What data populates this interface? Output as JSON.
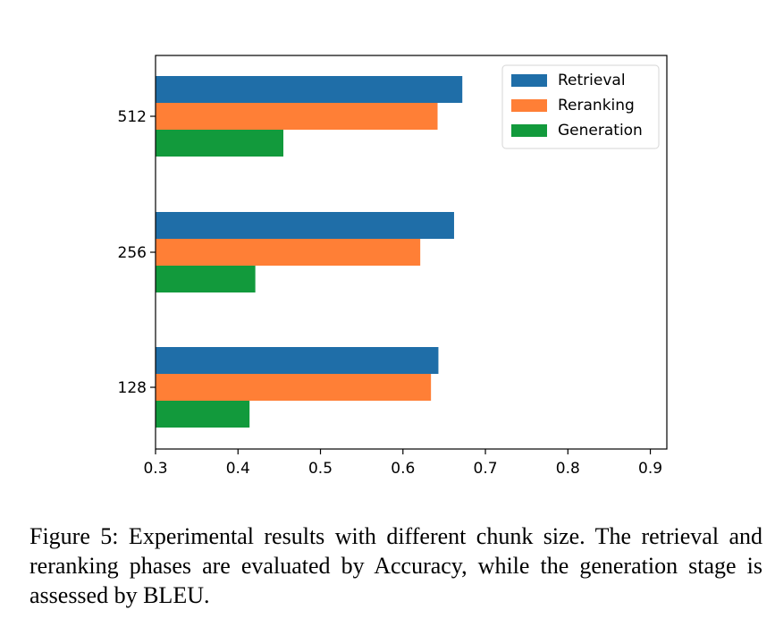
{
  "chart_data": {
    "type": "bar",
    "orientation": "horizontal",
    "categories": [
      "512",
      "256",
      "128"
    ],
    "series": [
      {
        "name": "Retrieval",
        "color": "#1f6ea8",
        "values": [
          0.672,
          0.662,
          0.643
        ]
      },
      {
        "name": "Reranking",
        "color": "#ff7f36",
        "values": [
          0.642,
          0.621,
          0.634
        ]
      },
      {
        "name": "Generation",
        "color": "#129a3c",
        "values": [
          0.455,
          0.421,
          0.414
        ]
      }
    ],
    "xlim": [
      0.3,
      0.92
    ],
    "xticks": [
      "0.3",
      "0.4",
      "0.5",
      "0.6",
      "0.7",
      "0.8",
      "0.9"
    ],
    "title": "",
    "xlabel": "",
    "ylabel": "",
    "grid": false,
    "legend_position": "top-right"
  },
  "caption": "Figure 5: Experimental results with different chunk size. The retrieval and reranking phases are evaluated by Accuracy, while the generation stage is assessed by BLEU."
}
